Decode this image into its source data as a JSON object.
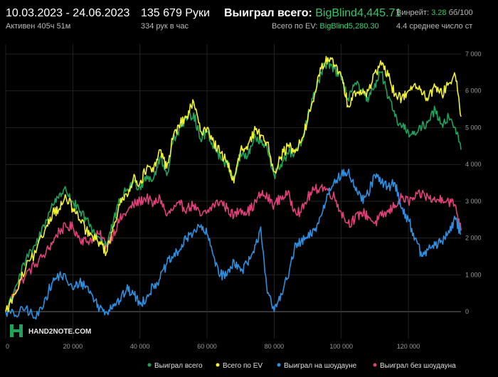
{
  "header": {
    "date_range": "10.03.2023 - 24.06.2023",
    "active_time": "Активен 405ч 51м",
    "hands": "135 679 Руки",
    "hands_per_hour": "334 рук в час",
    "won_total_label": "Выиграл всего:",
    "won_total_value": "BigBlind4,445.71",
    "ev_total_label": "Всего по EV:",
    "ev_total_value": "BigBlind5,280.30",
    "winrate_label": "Винрейт:",
    "winrate_value": "3.28",
    "winrate_unit": "бб/100",
    "avg_players": "4.4 среднее число ст"
  },
  "colors": {
    "won": "#1fa25a",
    "ev": "#f2f230",
    "showdown": "#2e8fe0",
    "nonshowdown": "#e0407a",
    "grid": "#2a2a2a",
    "zero_line": "#6a6a6a"
  },
  "logo": {
    "name": "hand2note-logo",
    "text": "HAND2NOTE.COM"
  },
  "chart_data": {
    "type": "line",
    "xlim": [
      0,
      135679
    ],
    "ylim": [
      -500,
      7000
    ],
    "x_ticks": [
      0,
      20000,
      40000,
      60000,
      80000,
      100000,
      120000
    ],
    "x_tick_labels": [
      "0",
      "20 000",
      "40 000",
      "60 000",
      "80 000",
      "100 000",
      "120 000"
    ],
    "y_ticks": [
      0,
      1000,
      2000,
      3000,
      4000,
      5000,
      6000,
      7000
    ],
    "y_tick_labels": [
      "0",
      "1 000",
      "2 000",
      "3 000",
      "4 000",
      "5 000",
      "6 000",
      "7 000"
    ],
    "grid": true,
    "legend_position": "bottom",
    "series": [
      {
        "key": "won",
        "name": "Выиграл всего",
        "x": [
          0,
          3000,
          6000,
          9000,
          12000,
          14000,
          16000,
          18000,
          20000,
          22000,
          24000,
          26000,
          28000,
          30000,
          32000,
          34000,
          36000,
          38000,
          40000,
          42000,
          44000,
          46000,
          48000,
          50000,
          52000,
          54000,
          56000,
          58000,
          60000,
          62000,
          64000,
          66000,
          68000,
          70000,
          72000,
          74000,
          76000,
          78000,
          80000,
          82000,
          84000,
          86000,
          88000,
          90000,
          92000,
          94000,
          96000,
          98000,
          100000,
          102000,
          104000,
          106000,
          108000,
          110000,
          112000,
          114000,
          116000,
          118000,
          120000,
          122000,
          124000,
          126000,
          128000,
          130000,
          132000,
          134000,
          135679
        ],
        "y": [
          0,
          700,
          1400,
          1800,
          2500,
          2900,
          3200,
          3300,
          3000,
          2700,
          2500,
          2200,
          2000,
          1800,
          2400,
          3000,
          3300,
          3500,
          3400,
          3700,
          3600,
          4200,
          3700,
          4700,
          5000,
          5200,
          5400,
          4700,
          4900,
          4500,
          4200,
          4000,
          3600,
          4300,
          4200,
          4700,
          4600,
          4400,
          3700,
          4000,
          4300,
          4300,
          4500,
          5300,
          5900,
          6500,
          6800,
          6600,
          6300,
          5800,
          6200,
          6000,
          5700,
          6200,
          6500,
          5800,
          5300,
          5000,
          4900,
          4800,
          5000,
          5200,
          5500,
          5100,
          5300,
          5000,
          4400
        ]
      },
      {
        "key": "ev",
        "name": "Всего по EV",
        "x": [
          0,
          3000,
          6000,
          9000,
          12000,
          14000,
          16000,
          18000,
          20000,
          22000,
          24000,
          26000,
          28000,
          30000,
          32000,
          34000,
          36000,
          38000,
          40000,
          42000,
          44000,
          46000,
          48000,
          50000,
          52000,
          54000,
          56000,
          58000,
          60000,
          62000,
          64000,
          66000,
          68000,
          70000,
          72000,
          74000,
          76000,
          78000,
          80000,
          82000,
          84000,
          86000,
          88000,
          90000,
          92000,
          94000,
          96000,
          98000,
          100000,
          102000,
          104000,
          106000,
          108000,
          110000,
          112000,
          114000,
          116000,
          118000,
          120000,
          122000,
          124000,
          126000,
          128000,
          130000,
          132000,
          134000,
          135679
        ],
        "y": [
          0,
          500,
          1200,
          1600,
          2300,
          2700,
          2800,
          3100,
          2800,
          2500,
          2200,
          2000,
          1900,
          1600,
          2300,
          2900,
          3200,
          3600,
          3500,
          3900,
          3800,
          4400,
          3900,
          4800,
          5100,
          5300,
          5700,
          4900,
          5000,
          4600,
          4300,
          4100,
          3500,
          4400,
          4400,
          4900,
          4800,
          4600,
          3800,
          4200,
          4500,
          4400,
          4600,
          5200,
          5900,
          6600,
          6900,
          6700,
          6400,
          5600,
          6000,
          5900,
          6000,
          6500,
          6700,
          6400,
          5900,
          5800,
          6000,
          6200,
          5900,
          5800,
          6100,
          5900,
          6200,
          6400,
          5300
        ]
      },
      {
        "key": "showdown",
        "name": "Выиграл на шоудауне",
        "x": [
          0,
          3000,
          6000,
          9000,
          12000,
          14000,
          16000,
          18000,
          20000,
          22000,
          24000,
          26000,
          28000,
          30000,
          32000,
          34000,
          36000,
          38000,
          40000,
          42000,
          44000,
          46000,
          48000,
          50000,
          52000,
          54000,
          56000,
          58000,
          60000,
          62000,
          64000,
          66000,
          68000,
          70000,
          72000,
          74000,
          76000,
          78000,
          80000,
          82000,
          84000,
          86000,
          88000,
          90000,
          92000,
          94000,
          96000,
          98000,
          100000,
          102000,
          104000,
          106000,
          108000,
          110000,
          112000,
          114000,
          116000,
          118000,
          120000,
          122000,
          124000,
          126000,
          128000,
          130000,
          132000,
          134000,
          135679
        ],
        "y": [
          0,
          -100,
          100,
          -200,
          400,
          800,
          1000,
          900,
          600,
          800,
          700,
          400,
          100,
          0,
          200,
          300,
          600,
          500,
          200,
          400,
          700,
          900,
          1300,
          1500,
          1700,
          2000,
          2200,
          2300,
          2100,
          1500,
          1000,
          1000,
          1400,
          1100,
          1300,
          1600,
          2300,
          500,
          0,
          500,
          900,
          1700,
          1900,
          2000,
          2200,
          2600,
          3200,
          3600,
          3700,
          3800,
          3400,
          3000,
          3200,
          3700,
          3500,
          3400,
          3500,
          2800,
          2500,
          2000,
          1500,
          1700,
          1800,
          1900,
          2200,
          2500,
          2100
        ]
      },
      {
        "key": "nonshowdown",
        "name": "Выиграл без шоудауна",
        "x": [
          0,
          3000,
          6000,
          9000,
          12000,
          14000,
          16000,
          18000,
          20000,
          22000,
          24000,
          26000,
          28000,
          30000,
          32000,
          34000,
          36000,
          38000,
          40000,
          42000,
          44000,
          46000,
          48000,
          50000,
          52000,
          54000,
          56000,
          58000,
          60000,
          62000,
          64000,
          66000,
          68000,
          70000,
          72000,
          74000,
          76000,
          78000,
          80000,
          82000,
          84000,
          86000,
          88000,
          90000,
          92000,
          94000,
          96000,
          98000,
          100000,
          102000,
          104000,
          106000,
          108000,
          110000,
          112000,
          114000,
          116000,
          118000,
          120000,
          122000,
          124000,
          126000,
          128000,
          130000,
          132000,
          134000,
          135679
        ],
        "y": [
          0,
          600,
          1000,
          1300,
          1600,
          1900,
          2200,
          2300,
          2300,
          2000,
          1900,
          2000,
          2100,
          1800,
          2100,
          2500,
          2700,
          2900,
          3000,
          3100,
          2900,
          3100,
          2600,
          2800,
          2900,
          2800,
          2900,
          2600,
          2700,
          2900,
          3000,
          2800,
          2600,
          2800,
          2700,
          2900,
          3200,
          3100,
          2900,
          3100,
          3200,
          2800,
          2700,
          3100,
          3300,
          3400,
          3300,
          3100,
          2700,
          2400,
          2500,
          2700,
          2600,
          2400,
          2600,
          2700,
          2900,
          3100,
          3000,
          3100,
          3200,
          3100,
          3000,
          3100,
          3000,
          2900,
          2200
        ]
      }
    ]
  }
}
